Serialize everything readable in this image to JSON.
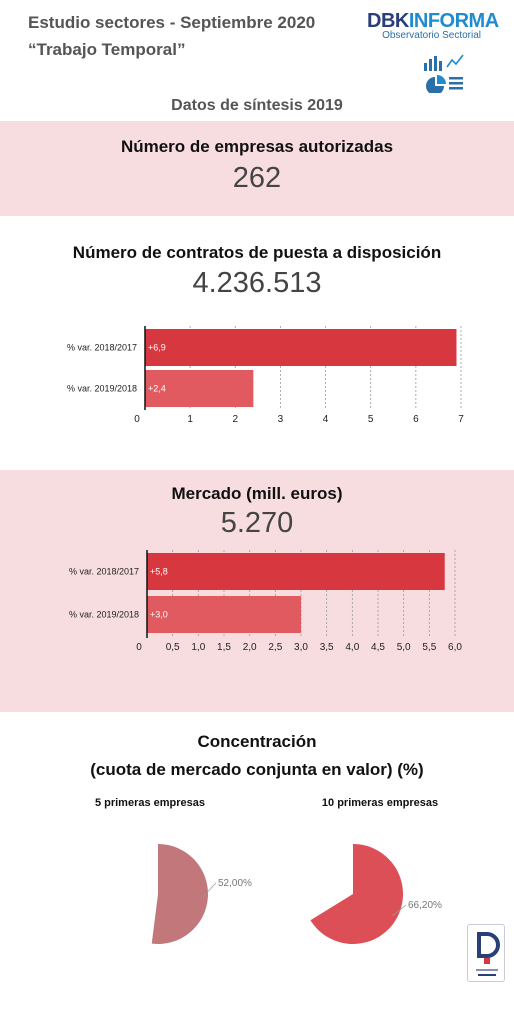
{
  "header": {
    "title_line1": "Estudio sectores - Septiembre 2020",
    "title_line2": "“Trabajo Temporal”",
    "brand_part1": "DBK",
    "brand_part2": "INFORMA",
    "brand_sub": "Observatorio Sectorial"
  },
  "synthesis_title": "Datos de síntesis 2019",
  "empresas": {
    "title": "Número de empresas autorizadas",
    "value": "262"
  },
  "contratos": {
    "title": "Número de contratos de puesta a disposición",
    "value": "4.236.513"
  },
  "mercado": {
    "title": "Mercado (mill. euros)",
    "value": "5.270"
  },
  "concentracion": {
    "title_line1": "Concentración",
    "title_line2": "(cuota de mercado conjunta en valor) (%)",
    "pie1_label": "5 primeras empresas",
    "pie2_label": "10 primeras empresas"
  },
  "colors": {
    "bar_dark": "#d7373f",
    "bar_light": "#e05a60",
    "pie1": "#c2777b",
    "pie2": "#dd4f56",
    "band": "#f7dde0"
  },
  "chart_data": [
    {
      "type": "bar",
      "orientation": "horizontal",
      "categories": [
        "% var. 2018/2017",
        "% var. 2019/2018"
      ],
      "values": [
        6.9,
        2.4
      ],
      "data_labels": [
        "+6,9",
        "+2,4"
      ],
      "xlim": [
        0,
        7
      ],
      "x_ticks": [
        "0",
        "1",
        "2",
        "3",
        "4",
        "5",
        "6",
        "7"
      ],
      "grid": "vertical dotted"
    },
    {
      "type": "bar",
      "orientation": "horizontal",
      "categories": [
        "% var. 2018/2017",
        "% var. 2019/2018"
      ],
      "values": [
        5.8,
        3.0
      ],
      "data_labels": [
        "+5,8",
        "+3,0"
      ],
      "xlim": [
        0,
        6
      ],
      "x_ticks": [
        "0",
        "0,5",
        "1,0",
        "1,5",
        "2,0",
        "2,5",
        "3,0",
        "3,5",
        "4,0",
        "4,5",
        "5,0",
        "5,5",
        "6,0"
      ],
      "grid": "vertical dotted"
    },
    {
      "type": "pie",
      "categories": [
        "5 primeras empresas"
      ],
      "values": [
        52.0
      ],
      "data_labels": [
        "52,00%"
      ]
    },
    {
      "type": "pie",
      "categories": [
        "10 primeras empresas"
      ],
      "values": [
        66.2
      ],
      "data_labels": [
        "66,20%"
      ]
    }
  ]
}
